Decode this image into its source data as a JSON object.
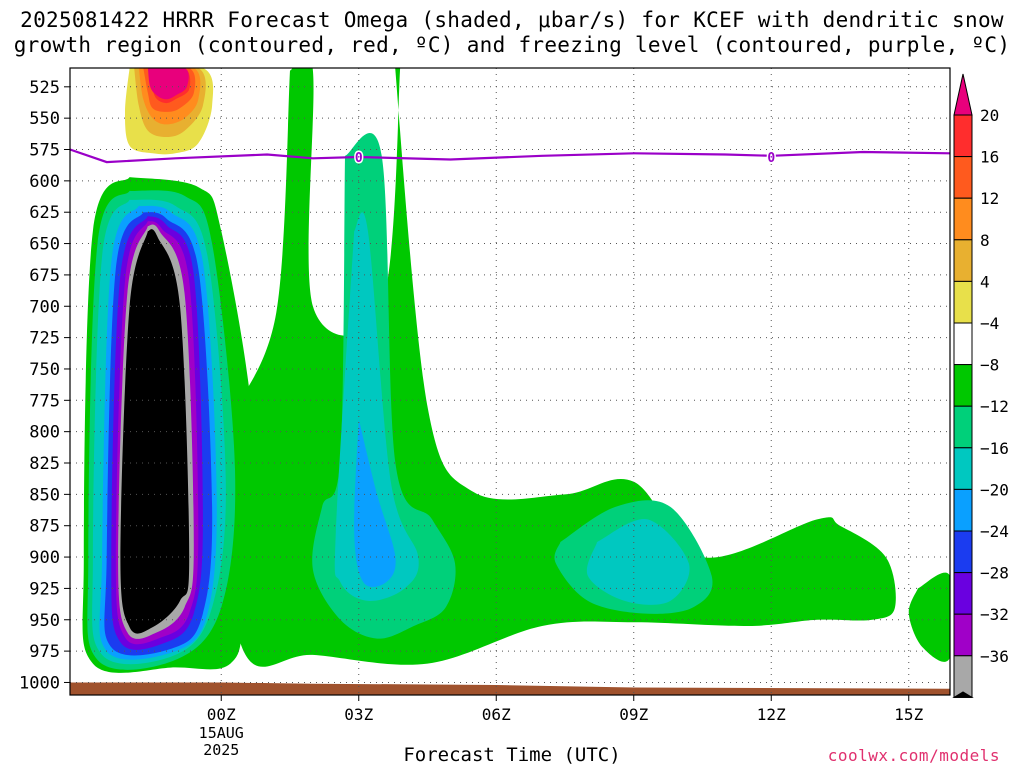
{
  "title": {
    "line1": "2025081422 HRRR Forecast Omega (shaded, μbar/s) for KCEF with dendritic snow",
    "line2": "growth region (contoured, red, ºC) and freezing level (contoured, purple, ºC)"
  },
  "xlabel": "Forecast Time (UTC)",
  "credit": "coolwx.com/models",
  "chart_data": {
    "type": "contour",
    "x_unit": "hours since 2025-08-15 00Z",
    "xlim": [
      -3.3,
      15.9
    ],
    "y_unit": "pressure (mb)",
    "ylim": [
      1010,
      510
    ],
    "y_ticks": [
      525,
      550,
      575,
      600,
      625,
      650,
      675,
      700,
      725,
      750,
      775,
      800,
      825,
      850,
      875,
      900,
      925,
      950,
      975,
      1000
    ],
    "x_ticks": [
      {
        "value": 0,
        "label": "00Z",
        "sub": [
          "15AUG",
          "2025"
        ]
      },
      {
        "value": 3,
        "label": "03Z"
      },
      {
        "value": 6,
        "label": "06Z"
      },
      {
        "value": 9,
        "label": "09Z"
      },
      {
        "value": 12,
        "label": "12Z"
      },
      {
        "value": 15,
        "label": "15Z"
      }
    ],
    "grid": true,
    "colorbar": {
      "labels": [
        "20",
        "16",
        "12",
        "8",
        "4",
        "−4",
        "−8",
        "−12",
        "−16",
        "−20",
        "−24",
        "−28",
        "−32",
        "−36"
      ],
      "colors": [
        "#e8007c",
        "#ff2d2d",
        "#ff5a1e",
        "#ff8c1e",
        "#e8b030",
        "#e8e04a",
        "#ffffff",
        "#00c800",
        "#00d07a",
        "#00c8c0",
        "#0aa0ff",
        "#1b3cf0",
        "#6a00e0",
        "#a000c8",
        "#a8a8a8",
        "#000000"
      ]
    },
    "freezing_level": {
      "label": "0",
      "color": "#9a00c8",
      "x": [
        -3.3,
        -2.5,
        -1.0,
        1.0,
        2.0,
        3.0,
        5.0,
        7.0,
        9.0,
        11.0,
        12.0,
        14.0,
        15.9
      ],
      "p": [
        575,
        585,
        582,
        579,
        582,
        581,
        583,
        580,
        578,
        579,
        580,
        577,
        578
      ]
    },
    "regions": [
      {
        "level": "−4 to 0",
        "fill": "#00c800",
        "x": [
          1.5,
          2.0,
          2.0,
          3.5,
          3.9,
          3.8,
          4.5,
          5.5,
          7.5,
          9.0,
          10.5,
          13.0,
          13.5,
          14.5,
          14.7,
          14.2,
          13.0,
          11.5,
          9.0,
          7.0,
          4.5,
          2.0,
          0.5,
          -0.1,
          0.2,
          1.2,
          1.5
        ],
        "p": [
          512,
          512,
          700,
          700,
          512,
          512,
          780,
          848,
          850,
          840,
          900,
          870,
          875,
          900,
          940,
          950,
          950,
          955,
          952,
          955,
          985,
          978,
          976,
          825,
          790,
          705,
          512
        ]
      },
      {
        "level": "−8 to −4",
        "fill": "#00d07a",
        "x": [
          2.7,
          3.5,
          3.8,
          4.6,
          5.1,
          4.9,
          4.2,
          3.4,
          2.6,
          2.0,
          2.2,
          2.6,
          2.7
        ],
        "p": [
          580,
          580,
          825,
          870,
          905,
          940,
          955,
          965,
          950,
          910,
          860,
          820,
          580
        ]
      },
      {
        "level": "−8 to −4",
        "fill": "#00d07a",
        "x": [
          7.4,
          8.6,
          9.8,
          10.7,
          10.3,
          9.2,
          8.0,
          7.3,
          7.4
        ],
        "p": [
          888,
          860,
          860,
          915,
          940,
          945,
          935,
          905,
          888
        ]
      },
      {
        "level": "−12 to −8",
        "fill": "#00c8c0",
        "x": [
          2.9,
          3.2,
          3.7,
          4.3,
          4.0,
          3.2,
          2.6,
          2.5,
          2.9
        ],
        "p": [
          640,
          640,
          840,
          900,
          925,
          935,
          920,
          880,
          640
        ]
      },
      {
        "level": "−12 to −8",
        "fill": "#00c8c0",
        "x": [
          8.2,
          9.3,
          10.2,
          9.8,
          8.8,
          8.0,
          8.2
        ],
        "p": [
          888,
          870,
          905,
          935,
          935,
          915,
          888
        ]
      },
      {
        "level": "−16 to −12",
        "fill": "#0aa0ff",
        "x": [
          3.0,
          3.4,
          3.8,
          3.6,
          3.1,
          2.9,
          3.0
        ],
        "p": [
          790,
          850,
          900,
          920,
          920,
          880,
          790
        ]
      },
      {
        "level": "≥ 4",
        "fill": "#e8e04a",
        "x": [
          -2.0,
          -0.4,
          -0.2,
          -0.5,
          -1.0,
          -1.5,
          -2.0,
          -2.1,
          -2.0
        ],
        "p": [
          510,
          510,
          540,
          570,
          578,
          578,
          572,
          545,
          510
        ]
      },
      {
        "level": "≥ 8",
        "fill": "#e8b030",
        "x": [
          -1.9,
          -0.5,
          -0.4,
          -0.8,
          -1.2,
          -1.6,
          -1.8,
          -1.9
        ],
        "p": [
          510,
          510,
          540,
          560,
          565,
          560,
          540,
          510
        ]
      },
      {
        "level": "≥ 12",
        "fill": "#ff8c1e",
        "x": [
          -1.8,
          -0.6,
          -0.5,
          -0.8,
          -1.2,
          -1.5,
          -1.7,
          -1.8
        ],
        "p": [
          510,
          510,
          535,
          550,
          555,
          550,
          535,
          510
        ]
      },
      {
        "level": "≥ 16",
        "fill": "#ff5a1e",
        "x": [
          -1.7,
          -0.7,
          -0.6,
          -0.9,
          -1.2,
          -1.5,
          -1.6,
          -1.7
        ],
        "p": [
          510,
          510,
          530,
          542,
          545,
          542,
          530,
          510
        ]
      },
      {
        "level": "≥ 20",
        "fill": "#ff2d2d",
        "x": [
          -1.6,
          -0.8,
          -0.7,
          -1.0,
          -1.2,
          -1.4,
          -1.5,
          -1.6
        ],
        "p": [
          510,
          510,
          527,
          535,
          538,
          535,
          527,
          510
        ]
      },
      {
        "level": "> 20",
        "fill": "#e8007c",
        "x": [
          -1.6,
          -0.8,
          -0.75,
          -1.0,
          -1.2,
          -1.4,
          -1.55,
          -1.6
        ],
        "p": [
          510,
          510,
          525,
          532,
          535,
          532,
          525,
          510
        ]
      },
      {
        "level": "−4 to 0",
        "fill": "#00c800",
        "x": [
          -2.0,
          -0.5,
          0.0,
          0.7,
          0.5,
          0.2,
          -1.0,
          -2.8,
          -3.0,
          -2.8,
          -2.0
        ],
        "p": [
          597,
          605,
          640,
          800,
          940,
          985,
          988,
          985,
          900,
          640,
          597
        ]
      },
      {
        "level": "−8 to −4",
        "fill": "#00d07a",
        "x": [
          -2.0,
          -0.8,
          -0.2,
          0.3,
          0.0,
          -1.0,
          -2.7,
          -2.9,
          -2.7,
          -2.0
        ],
        "p": [
          608,
          612,
          650,
          830,
          940,
          982,
          982,
          900,
          650,
          608
        ]
      },
      {
        "level": "−12 to −8",
        "fill": "#00c8c0",
        "x": [
          -2.0,
          -1.0,
          -0.3,
          0.1,
          -0.2,
          -1.0,
          -2.6,
          -2.8,
          -2.6,
          -2.0
        ],
        "p": [
          615,
          620,
          660,
          840,
          940,
          978,
          978,
          900,
          660,
          615
        ]
      },
      {
        "level": "−16 to −12",
        "fill": "#0aa0ff",
        "x": [
          -1.8,
          -1.1,
          -0.4,
          -0.1,
          -0.3,
          -1.0,
          -2.5,
          -2.6,
          -2.4,
          -1.8
        ],
        "p": [
          620,
          625,
          665,
          850,
          945,
          975,
          975,
          900,
          665,
          620
        ]
      },
      {
        "level": "−20 to −16",
        "fill": "#1b3cf0",
        "x": [
          -1.7,
          -1.2,
          -0.5,
          -0.2,
          -0.4,
          -1.0,
          -2.4,
          -2.5,
          -2.3,
          -1.7
        ],
        "p": [
          625,
          630,
          670,
          860,
          945,
          972,
          972,
          900,
          670,
          625
        ]
      },
      {
        "level": "−24 to −20",
        "fill": "#6a00e0",
        "x": [
          -1.6,
          -1.2,
          -0.6,
          -0.4,
          -0.6,
          -1.2,
          -2.2,
          -2.4,
          -2.2,
          -1.6
        ],
        "p": [
          628,
          635,
          675,
          870,
          945,
          968,
          968,
          900,
          675,
          628
        ]
      },
      {
        "level": "−28 to −24",
        "fill": "#a000c8",
        "x": [
          -1.6,
          -1.3,
          -0.7,
          -0.5,
          -0.7,
          -1.3,
          -2.1,
          -2.3,
          -2.1,
          -1.6
        ],
        "p": [
          632,
          638,
          680,
          880,
          945,
          964,
          964,
          900,
          680,
          632
        ]
      },
      {
        "level": "−32 to −28",
        "fill": "#a8a8a8",
        "x": [
          -1.6,
          -1.35,
          -0.8,
          -0.6,
          -0.8,
          -1.4,
          -2.05,
          -2.25,
          -2.05,
          -1.6
        ],
        "p": [
          636,
          640,
          690,
          890,
          940,
          960,
          960,
          900,
          690,
          636
        ]
      },
      {
        "level": "< −32",
        "fill": "#000000",
        "x": [
          -1.6,
          -1.4,
          -0.9,
          -0.7,
          -0.9,
          -1.5,
          -2.0,
          -2.2,
          -2.0,
          -1.6
        ],
        "p": [
          640,
          644,
          700,
          900,
          935,
          956,
          956,
          900,
          700,
          640
        ]
      },
      {
        "level": "−4 to 0",
        "fill": "#00c800",
        "x": [
          15.2,
          15.9,
          15.9,
          15.3,
          15.0,
          15.2
        ],
        "p": [
          925,
          915,
          980,
          972,
          945,
          925
        ]
      }
    ],
    "ground": {
      "fill": "#a0522d",
      "x": [
        -3.3,
        0.0,
        2.0,
        6.0,
        9.0,
        15.9
      ],
      "p_top": [
        1000,
        1000,
        1001,
        1002,
        1004,
        1005
      ]
    }
  }
}
